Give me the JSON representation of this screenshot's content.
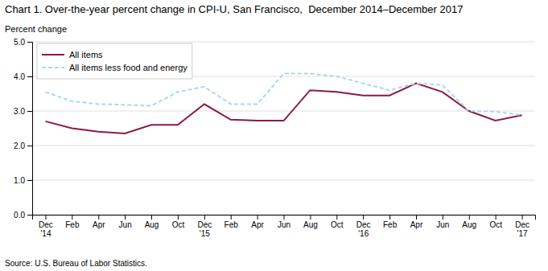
{
  "chart_data": {
    "type": "line",
    "title": "Chart 1. Over-the-year percent change in CPI-U, San Francisco,  December 2014–December 2017",
    "ylabel": "Percent change",
    "source": "Source: U.S. Bureau of Labor Statistics.",
    "categories": [
      "Dec\n'14",
      "Feb",
      "Apr",
      "Jun",
      "Aug",
      "Oct",
      "Dec\n'15",
      "Feb",
      "Apr",
      "Jun",
      "Aug",
      "Oct",
      "Dec\n'16",
      "Feb",
      "Apr",
      "Jun",
      "Aug",
      "Oct",
      "Dec\n'17"
    ],
    "series": [
      {
        "name": "All items",
        "color": "#8B1A4A",
        "line_style": "solid",
        "values": [
          2.7,
          2.5,
          2.4,
          2.35,
          2.6,
          2.6,
          3.2,
          2.75,
          2.72,
          2.72,
          3.6,
          3.55,
          3.45,
          3.45,
          3.8,
          3.55,
          3.0,
          2.72,
          2.88
        ]
      },
      {
        "name": "All items less food and energy",
        "color": "#ADD8E6",
        "line_style": "dashed",
        "values": [
          3.55,
          3.28,
          3.2,
          3.18,
          3.15,
          3.55,
          3.7,
          3.2,
          3.2,
          4.08,
          4.08,
          4.0,
          3.8,
          3.6,
          3.8,
          3.75,
          3.0,
          2.98,
          2.88
        ]
      }
    ],
    "ylim": [
      0.0,
      5.0
    ],
    "yticks": [
      {
        "value": 0.0,
        "label": "0.0"
      },
      {
        "value": 1.0,
        "label": "1.0"
      },
      {
        "value": 2.0,
        "label": "2.0"
      },
      {
        "value": 3.0,
        "label": "3.0"
      },
      {
        "value": 4.0,
        "label": "4.0"
      },
      {
        "value": 5.0,
        "label": "5.0"
      }
    ],
    "grid": true,
    "legend": "upper left"
  }
}
